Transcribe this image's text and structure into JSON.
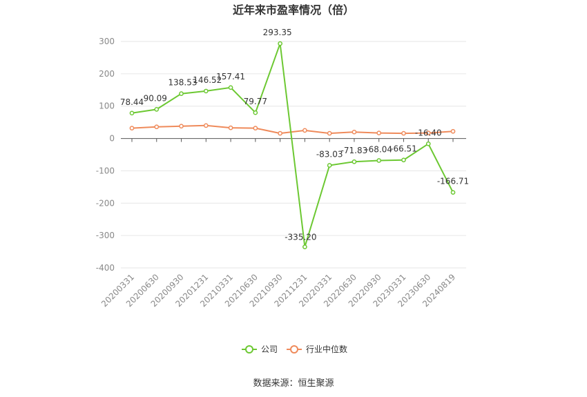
{
  "chart_data": {
    "type": "line",
    "title": "近年来市盈率情况（倍）",
    "categories": [
      "20200331",
      "20200630",
      "20200930",
      "20201231",
      "20210331",
      "20210630",
      "20210930",
      "20211231",
      "20220331",
      "20220630",
      "20220930",
      "20230331",
      "20230630",
      "20240819"
    ],
    "series": [
      {
        "name": "公司",
        "color": "#6cc832",
        "values": [
          78.44,
          90.09,
          138.53,
          146.52,
          157.41,
          79.77,
          293.35,
          -335.2,
          -83.03,
          -71.83,
          -68.04,
          -66.51,
          -16.4,
          -166.71
        ],
        "labels": [
          "78.44",
          "90.09",
          "138.53",
          "146.52",
          "157.41",
          "79.77",
          "293.35",
          "-335.20",
          "-83.03",
          "-71.83",
          "-68.04",
          "-66.51",
          "-16.40",
          "-166.71"
        ]
      },
      {
        "name": "行业中位数",
        "color": "#ef8a5a",
        "values": [
          32,
          36,
          38,
          40,
          33,
          32,
          16,
          25,
          16,
          20,
          17,
          16,
          17,
          22
        ]
      }
    ],
    "yticks": [
      300,
      200,
      100,
      0,
      -100,
      -200,
      -300,
      -400
    ],
    "ylim": [
      -400,
      300
    ],
    "grid": true,
    "legend_position": "bottom-center",
    "source": "数据来源：恒生聚源"
  }
}
